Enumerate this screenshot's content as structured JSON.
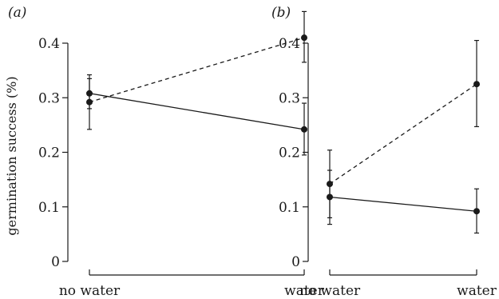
{
  "chart_data": [
    {
      "type": "line",
      "panel_label": "(a)",
      "ylabel": "germination success (%)",
      "categories": [
        "no water",
        "water"
      ],
      "yticks": [
        "0",
        "0.1",
        "0.2",
        "0.3",
        "0.4"
      ],
      "ylim": [
        0,
        0.45
      ],
      "series": [
        {
          "style": "dashed",
          "values": [
            0.292,
            0.41
          ],
          "lower": [
            0.242,
            0.365
          ],
          "upper": [
            0.342,
            0.458
          ]
        },
        {
          "style": "solid",
          "values": [
            0.308,
            0.242
          ],
          "lower": [
            0.28,
            0.195
          ],
          "upper": [
            0.335,
            0.29
          ]
        }
      ]
    },
    {
      "type": "line",
      "panel_label": "(b)",
      "ylabel": "",
      "categories": [
        "no water",
        "water"
      ],
      "yticks": [
        "0",
        "0.1",
        "0.2",
        "0.3",
        "0.4"
      ],
      "ylim": [
        0,
        0.45
      ],
      "series": [
        {
          "style": "dashed",
          "values": [
            0.142,
            0.325
          ],
          "lower": [
            0.08,
            0.247
          ],
          "upper": [
            0.204,
            0.405
          ]
        },
        {
          "style": "solid",
          "values": [
            0.118,
            0.092
          ],
          "lower": [
            0.068,
            0.052
          ],
          "upper": [
            0.167,
            0.133
          ]
        }
      ]
    }
  ]
}
